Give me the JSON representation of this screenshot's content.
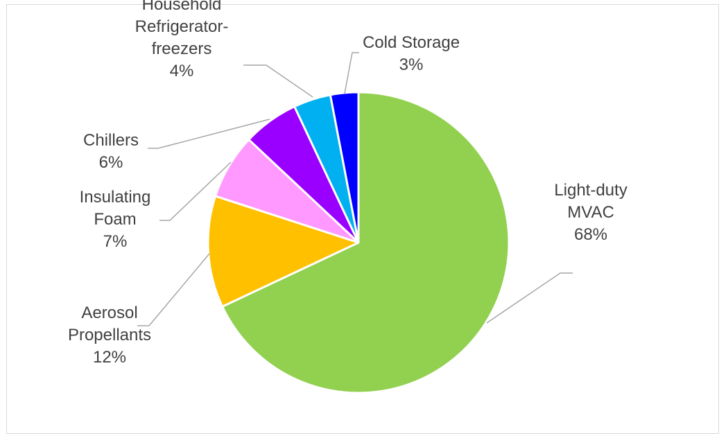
{
  "chart_data": {
    "type": "pie",
    "title": "",
    "start_angle_deg": 0,
    "direction": "clockwise",
    "slice_border_color": "#ffffff",
    "slices": [
      {
        "label_lines": [
          "Light-duty",
          "MVAC"
        ],
        "percent_label": "68%",
        "value": 68,
        "color": "#92D050"
      },
      {
        "label_lines": [
          "Aerosol",
          "Propellants"
        ],
        "percent_label": "12%",
        "value": 12,
        "color": "#FFC000"
      },
      {
        "label_lines": [
          "Insulating",
          "Foam"
        ],
        "percent_label": "7%",
        "value": 7,
        "color": "#FF99FF"
      },
      {
        "label_lines": [
          "Chillers"
        ],
        "percent_label": "6%",
        "value": 6,
        "color": "#9900FF"
      },
      {
        "label_lines": [
          "Household",
          "Refrigerator-",
          "freezers"
        ],
        "percent_label": "4%",
        "value": 4,
        "color": "#00B0F0"
      },
      {
        "label_lines": [
          "Cold Storage"
        ],
        "percent_label": "3%",
        "value": 3,
        "color": "#0000FF"
      }
    ]
  }
}
